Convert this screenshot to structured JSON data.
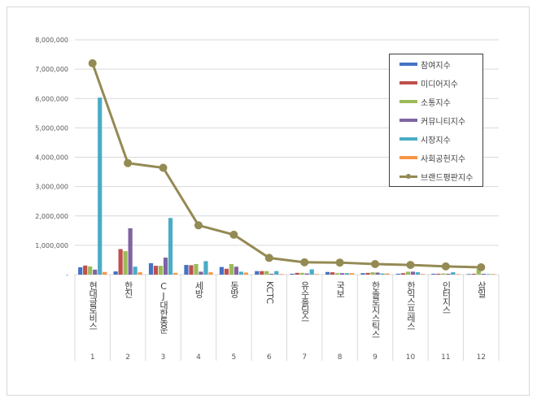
{
  "chart_data": {
    "type": "bar",
    "title": "",
    "xlabel": "",
    "ylabel": "",
    "ylim": [
      0,
      8000000
    ],
    "yticks": [
      "-",
      "1,000,000",
      "2,000,000",
      "3,000,000",
      "4,000,000",
      "5,000,000",
      "6,000,000",
      "7,000,000",
      "8,000,000"
    ],
    "grid": true,
    "legend_position": "upper right (inside)",
    "categories": [
      "현대글로비스",
      "한진",
      "CJ대한통운",
      "세방",
      "동방",
      "KCTC",
      "유수홀딩스",
      "국보",
      "한솔로지스틱스",
      "한익스프레스",
      "인터지스",
      "삼일"
    ],
    "ranks": [
      "1",
      "2",
      "3",
      "4",
      "5",
      "6",
      "7",
      "8",
      "9",
      "10",
      "11",
      "12"
    ],
    "series": [
      {
        "name": "참여지수",
        "type": "bar",
        "color": "#4472c4",
        "values": [
          250000,
          110000,
          390000,
          330000,
          260000,
          120000,
          30000,
          90000,
          50000,
          30000,
          30000,
          20000
        ]
      },
      {
        "name": "미디어지수",
        "type": "bar",
        "color": "#c0504d",
        "values": [
          310000,
          870000,
          300000,
          320000,
          200000,
          120000,
          60000,
          80000,
          60000,
          50000,
          30000,
          30000
        ]
      },
      {
        "name": "소통지수",
        "type": "bar",
        "color": "#9bbb59",
        "values": [
          280000,
          800000,
          300000,
          360000,
          360000,
          120000,
          60000,
          50000,
          80000,
          100000,
          40000,
          190000
        ]
      },
      {
        "name": "커뮤니티지수",
        "type": "bar",
        "color": "#8064a2",
        "values": [
          170000,
          1580000,
          580000,
          100000,
          270000,
          30000,
          40000,
          50000,
          70000,
          100000,
          30000,
          30000
        ]
      },
      {
        "name": "시장지수",
        "type": "bar",
        "color": "#4bacc6",
        "values": [
          6030000,
          270000,
          1930000,
          460000,
          100000,
          120000,
          180000,
          50000,
          40000,
          80000,
          80000,
          20000
        ]
      },
      {
        "name": "사회공헌지수",
        "type": "bar",
        "color": "#f79646",
        "values": [
          90000,
          80000,
          60000,
          80000,
          70000,
          20000,
          20000,
          50000,
          40000,
          20000,
          20000,
          20000
        ]
      },
      {
        "name": "브랜드평판지수",
        "type": "line",
        "color": "#948a54",
        "values": [
          7200000,
          3800000,
          3640000,
          1680000,
          1360000,
          570000,
          420000,
          410000,
          360000,
          330000,
          280000,
          250000
        ]
      }
    ]
  }
}
